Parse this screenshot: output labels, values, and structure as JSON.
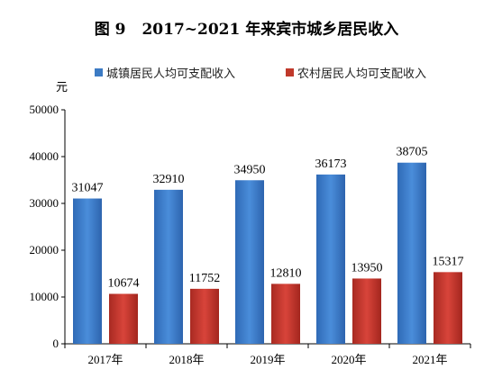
{
  "chart_data": {
    "type": "bar",
    "title_number": "图 9",
    "title": "2017~2021 年来宾市城乡居民收入",
    "ylabel": "元",
    "ylim": [
      0,
      50000
    ],
    "yticks": [
      0,
      10000,
      20000,
      30000,
      40000,
      50000
    ],
    "categories": [
      "2017年",
      "2018年",
      "2019年",
      "2020年",
      "2021年"
    ],
    "series": [
      {
        "name": "城镇居民人均可支配收入",
        "color": "#3C7BC4",
        "values": [
          31047,
          32910,
          34950,
          36173,
          38705
        ]
      },
      {
        "name": "农村居民人均可支配收入",
        "color": "#C0392B",
        "values": [
          10674,
          11752,
          12810,
          13950,
          15317
        ]
      }
    ],
    "legend_position": "top",
    "grid": false
  }
}
